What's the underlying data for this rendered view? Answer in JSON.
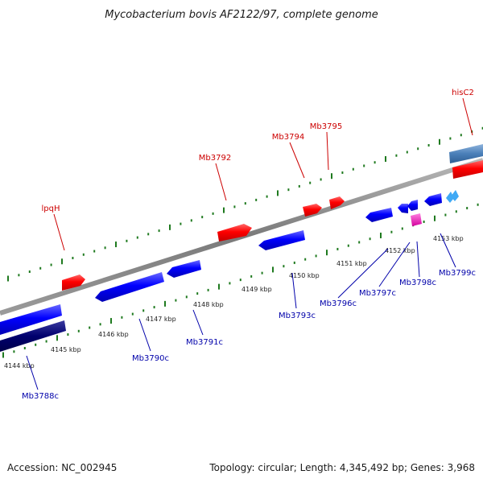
{
  "title": "Mycobacterium bovis AF2122/97, complete genome",
  "footer": {
    "accession": "Accession: NC_002945",
    "summary": "Topology: circular; Length: 4,345,492 bp; Genes: 3,968"
  },
  "colors": {
    "forward_label": "#cc0000",
    "reverse_label": "#0000aa",
    "forward_gene": "#ff0000",
    "reverse_gene": "#0000ff",
    "backbone": "#808080",
    "tick": "#1f7a1f"
  },
  "ticks": [
    "4144 kbp",
    "4145 kbp",
    "4146 kbp",
    "4147 kbp",
    "4148 kbp",
    "4149 kbp",
    "4150 kbp",
    "4151 kbp",
    "4152 kbp",
    "4153 kbp"
  ],
  "forward_labels": [
    "lpqH",
    "Mb3792",
    "Mb3794",
    "Mb3795",
    "hisC2"
  ],
  "reverse_labels": [
    "Mb3788c",
    "Mb3790c",
    "Mb3791c",
    "Mb3793c",
    "Mb3796c",
    "Mb3797c",
    "Mb3798c",
    "Mb3799c"
  ]
}
